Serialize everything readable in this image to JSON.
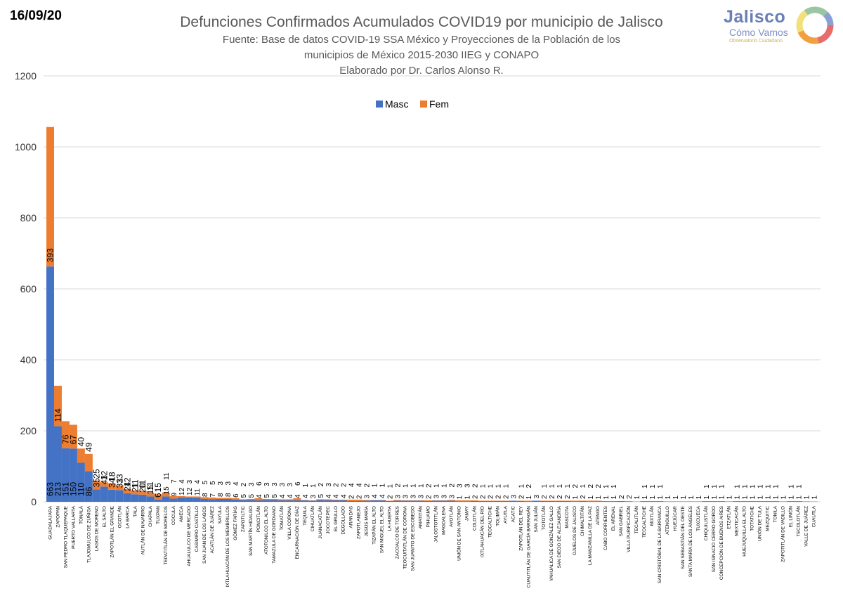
{
  "date": "16/09/20",
  "logo": {
    "name": "Jalisco",
    "line2": "Cómo Vamos",
    "line3": "Observatorio Ciudadano"
  },
  "chart_data": {
    "type": "bar",
    "stacked": true,
    "title": "Defunciones Confirmados Acumulados COVID19 por municipio de Jalisco",
    "subtitle": [
      "Fuente: Base de datos COVID-19 SSA México y Proyecciones de la Población de los",
      "municipios de México 2015-2030 IIEG y CONAPO",
      "Elaborado por Dr. Carlos Alonso R."
    ],
    "legend_position": "top-center",
    "ylim": [
      0,
      1200
    ],
    "yticks": [
      0,
      200,
      400,
      600,
      800,
      1000,
      1200
    ],
    "grid": true,
    "colors": {
      "masc": "#4472c4",
      "fem": "#ed7d31"
    },
    "categories": [
      "GUADALAJARA",
      "ZAPOPAN",
      "SAN PEDRO TLAQUEPAQUE",
      "PUERTO VALLARTA",
      "TONALÁ",
      "TLAJOMULCO DE ZÚÑIGA",
      "LAGOS DE MORENO",
      "EL SALTO",
      "ZAPOTLÁN EL GRANDE",
      "OCOTLÁN",
      "LA BARCA",
      "TALA",
      "AUTLÁN DE NAVARRO",
      "CHAPALA",
      "TUXPAN",
      "TEPATITLÁN DE MORELOS",
      "COCULA",
      "AMECA",
      "AHUALULCO DE MERCADO",
      "CASIMIRO CASTILLO",
      "SAN JUAN DE LOS LAGOS",
      "ACATLÁN DE JUÁREZ",
      "SAYULA",
      "IXTLAHUACÁN DE LOS MEMBRILLOS",
      "GÓMEZ FARÍAS",
      "ZAPOTILTIC",
      "SAN MARTÍN HIDALGO",
      "PONCITLÁN",
      "ATOTONILCO EL ALTO",
      "TAMAZULA DE GORDIANO",
      "TOMATLÁN",
      "VILLA CORONA",
      "ENCARNACIÓN DE DÍAZ",
      "TEQUILA",
      "CIHUATLÁN",
      "JUANACATLÁN",
      "JOCOTEPEC",
      "EL GRULLO",
      "DEGOLLADO",
      "ARANDAS",
      "ZAPOTLANEJO",
      "JESÚS MARÍA",
      "TIZAPÁN EL ALTO",
      "SAN MIGUEL EL ALTO",
      "LA HUERTA",
      "ZACOALCO DE TORRES",
      "TEOCUITATLÁN DE CORONA",
      "SAN JUANITO DE ESCOBEDO",
      "AMATITÁN",
      "PIHUAMO",
      "JALOSTOTITLÁN",
      "MAGDALENA",
      "AYOTLÁN",
      "UNIÓN DE SAN ANTONIO",
      "JAMAY",
      "COLOTLÁN",
      "IXTLAHUACÁN DEL RÍO",
      "TEOCALTICHE",
      "TOLIMÁN",
      "AYUTLA",
      "ACATIC",
      "ZAPOTLÁN DEL REY",
      "CUAUTITLÁN DE GARCÍA BARRAGÁN",
      "SAN JULIÁN",
      "TOTOTLÁN",
      "YAHUALICA DE GONZÁLEZ GALLO",
      "SAN DIEGO DE ALEJANDRÍA",
      "MASCOTA",
      "OJUELOS DE JALISCO",
      "CHIMALTITÁN",
      "LA MANZANILLA DE LA PAZ",
      "ATENGO",
      "CABO CORRIENTES",
      "EL ARENAL",
      "SAN GABRIEL",
      "VILLA PURIFICACIÓN",
      "TECALITLÁN",
      "TEOCALTICHE",
      "MIXTLÁN",
      "SAN CRISTÓBAL DE LA BARRANCA",
      "ATENGUILLO",
      "HUEJÚCAR",
      "SAN SEBASTIÁN DEL OESTE",
      "SANTA MARÍA DE LOS ÁNGELES",
      "TUXCUECA",
      "CHIQUILISTLÁN",
      "SAN IGNACIO CERRO GORDO",
      "CONCEPCIÓN DE BUENOS AIRES",
      "ETZATLÁN",
      "MEXTICACÁN",
      "HUEJUQUILLA EL ALTO",
      "TOTATICHE",
      "UNIÓN DE TULA",
      "MEZQUITIC",
      "TONILA",
      "ZAPOTITLÁN DE VADILLO",
      "EL LIMÓN",
      "TECOLOTLÁN",
      "VALLE DE JUÁREZ",
      "CUAUTLA"
    ],
    "series": [
      {
        "name": "Masc",
        "values": [
          663,
          213,
          151,
          150,
          110,
          86,
          35,
          43,
          34,
          33,
          24,
          21,
          20,
          15,
          6,
          15,
          9,
          12,
          12,
          11,
          8,
          7,
          8,
          8,
          6,
          5,
          5,
          4,
          5,
          5,
          4,
          4,
          4,
          4,
          3,
          5,
          4,
          4,
          4,
          2,
          2,
          3,
          4,
          4,
          2,
          3,
          3,
          3,
          3,
          2,
          3,
          3,
          3,
          1,
          1,
          2,
          2,
          2,
          2,
          2,
          3,
          2,
          1,
          3,
          2,
          2,
          2,
          2,
          1,
          2,
          1,
          1,
          1,
          1,
          2,
          0,
          0,
          1,
          1,
          1,
          1,
          1,
          1,
          1,
          1,
          1,
          1,
          1,
          1,
          1,
          1,
          1,
          1,
          1,
          1,
          1,
          1,
          1,
          1,
          0
        ]
      },
      {
        "name": "Fem",
        "values": [
          393,
          114,
          76,
          67,
          40,
          49,
          25,
          12,
          18,
          13,
          12,
          11,
          11,
          11,
          15,
          11,
          7,
          4,
          3,
          4,
          5,
          5,
          3,
          3,
          4,
          2,
          3,
          6,
          3,
          3,
          3,
          3,
          6,
          1,
          1,
          2,
          3,
          2,
          2,
          4,
          4,
          2,
          1,
          1,
          1,
          2,
          1,
          1,
          1,
          2,
          1,
          1,
          2,
          3,
          3,
          2,
          1,
          1,
          1,
          1,
          0,
          1,
          2,
          0,
          1,
          1,
          1,
          1,
          2,
          1,
          2,
          2,
          1,
          1,
          0,
          2,
          1,
          1,
          1,
          1,
          0,
          0,
          0,
          0,
          0,
          1,
          1,
          1,
          0,
          1,
          1,
          1,
          1,
          1,
          1,
          0,
          1,
          1,
          0,
          1
        ]
      }
    ]
  }
}
